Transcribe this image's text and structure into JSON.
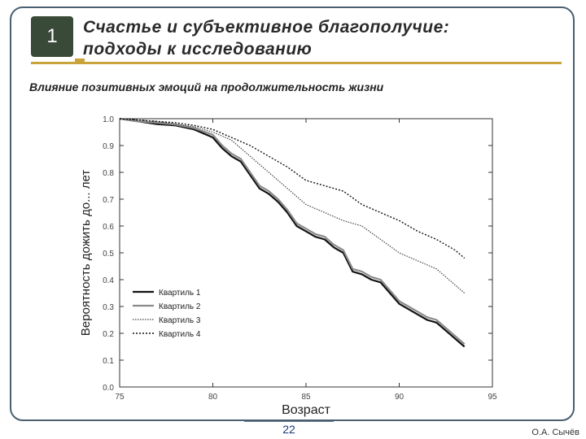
{
  "slide": {
    "number": "1",
    "title_line1": "Счастье и субъективное благополучие:",
    "title_line2": "подходы к исследованию",
    "subtitle": "Влияние позитивных эмоций на продолжительность жизни",
    "page_number": "22",
    "author": "О.А. Сычёв",
    "colors": {
      "badge": "#3a4a38",
      "rule": "#c8a43a",
      "frame": "#4a6070"
    }
  },
  "chart_data": {
    "type": "line",
    "title": "",
    "xlabel": "Возраст",
    "ylabel": "Вероятность дожить до... лет",
    "xlim": [
      75,
      95
    ],
    "ylim": [
      0.0,
      1.0
    ],
    "x_ticks": [
      "75",
      "80",
      "85",
      "90",
      "95"
    ],
    "y_ticks": [
      "0.0",
      "0.1",
      "0.2",
      "0.3",
      "0.4",
      "0.5",
      "0.6",
      "0.7",
      "0.8",
      "0.9",
      "1.0"
    ],
    "grid": false,
    "legend_position": "lower-left",
    "series": [
      {
        "name": "Квартиль 1",
        "color": "#111111",
        "dash": "solid",
        "width": 2.2,
        "x": [
          75,
          76,
          77,
          78,
          79,
          80,
          80.5,
          81,
          81.5,
          82,
          82.5,
          83,
          83.5,
          84,
          84.5,
          85,
          85.5,
          86,
          86.5,
          87,
          87.5,
          88,
          88.5,
          89,
          89.5,
          90,
          90.5,
          91,
          91.5,
          92,
          92.5,
          93,
          93.5
        ],
        "y": [
          1.0,
          0.99,
          0.98,
          0.975,
          0.96,
          0.93,
          0.89,
          0.86,
          0.84,
          0.79,
          0.74,
          0.72,
          0.69,
          0.65,
          0.6,
          0.58,
          0.56,
          0.55,
          0.52,
          0.5,
          0.43,
          0.42,
          0.4,
          0.39,
          0.35,
          0.31,
          0.29,
          0.27,
          0.25,
          0.24,
          0.21,
          0.18,
          0.15
        ]
      },
      {
        "name": "Квартиль 2",
        "color": "#8a8a8a",
        "dash": "solid",
        "width": 2.2,
        "x": [
          75,
          76,
          77,
          78,
          79,
          80,
          80.5,
          81,
          81.5,
          82,
          82.5,
          83,
          83.5,
          84,
          84.5,
          85,
          85.5,
          86,
          86.5,
          87,
          87.5,
          88,
          88.5,
          89,
          89.5,
          90,
          90.5,
          91,
          91.5,
          92,
          92.5,
          93,
          93.5
        ],
        "y": [
          1.0,
          0.99,
          0.985,
          0.978,
          0.965,
          0.94,
          0.9,
          0.87,
          0.85,
          0.8,
          0.75,
          0.73,
          0.7,
          0.66,
          0.61,
          0.59,
          0.57,
          0.56,
          0.53,
          0.51,
          0.44,
          0.43,
          0.41,
          0.4,
          0.36,
          0.32,
          0.3,
          0.28,
          0.26,
          0.25,
          0.22,
          0.19,
          0.16
        ]
      },
      {
        "name": "Квартиль 3",
        "color": "#444444",
        "dash": "1.5,1.5",
        "width": 1.2,
        "x": [
          75,
          76,
          77,
          78,
          79,
          80,
          81,
          82,
          83,
          84,
          85,
          86,
          87,
          88,
          89,
          90,
          91,
          92,
          93,
          93.5
        ],
        "y": [
          1.0,
          0.995,
          0.99,
          0.98,
          0.97,
          0.95,
          0.92,
          0.86,
          0.8,
          0.74,
          0.68,
          0.65,
          0.62,
          0.6,
          0.55,
          0.5,
          0.47,
          0.44,
          0.38,
          0.35
        ]
      },
      {
        "name": "Квартиль 4",
        "color": "#111111",
        "dash": "2,2",
        "width": 1.4,
        "x": [
          75,
          76,
          77,
          78,
          79,
          80,
          81,
          82,
          83,
          84,
          85,
          86,
          87,
          88,
          89,
          90,
          91,
          92,
          93,
          93.5
        ],
        "y": [
          1.0,
          0.995,
          0.99,
          0.985,
          0.975,
          0.96,
          0.93,
          0.9,
          0.86,
          0.82,
          0.77,
          0.75,
          0.73,
          0.68,
          0.65,
          0.62,
          0.58,
          0.55,
          0.51,
          0.48
        ]
      }
    ]
  }
}
